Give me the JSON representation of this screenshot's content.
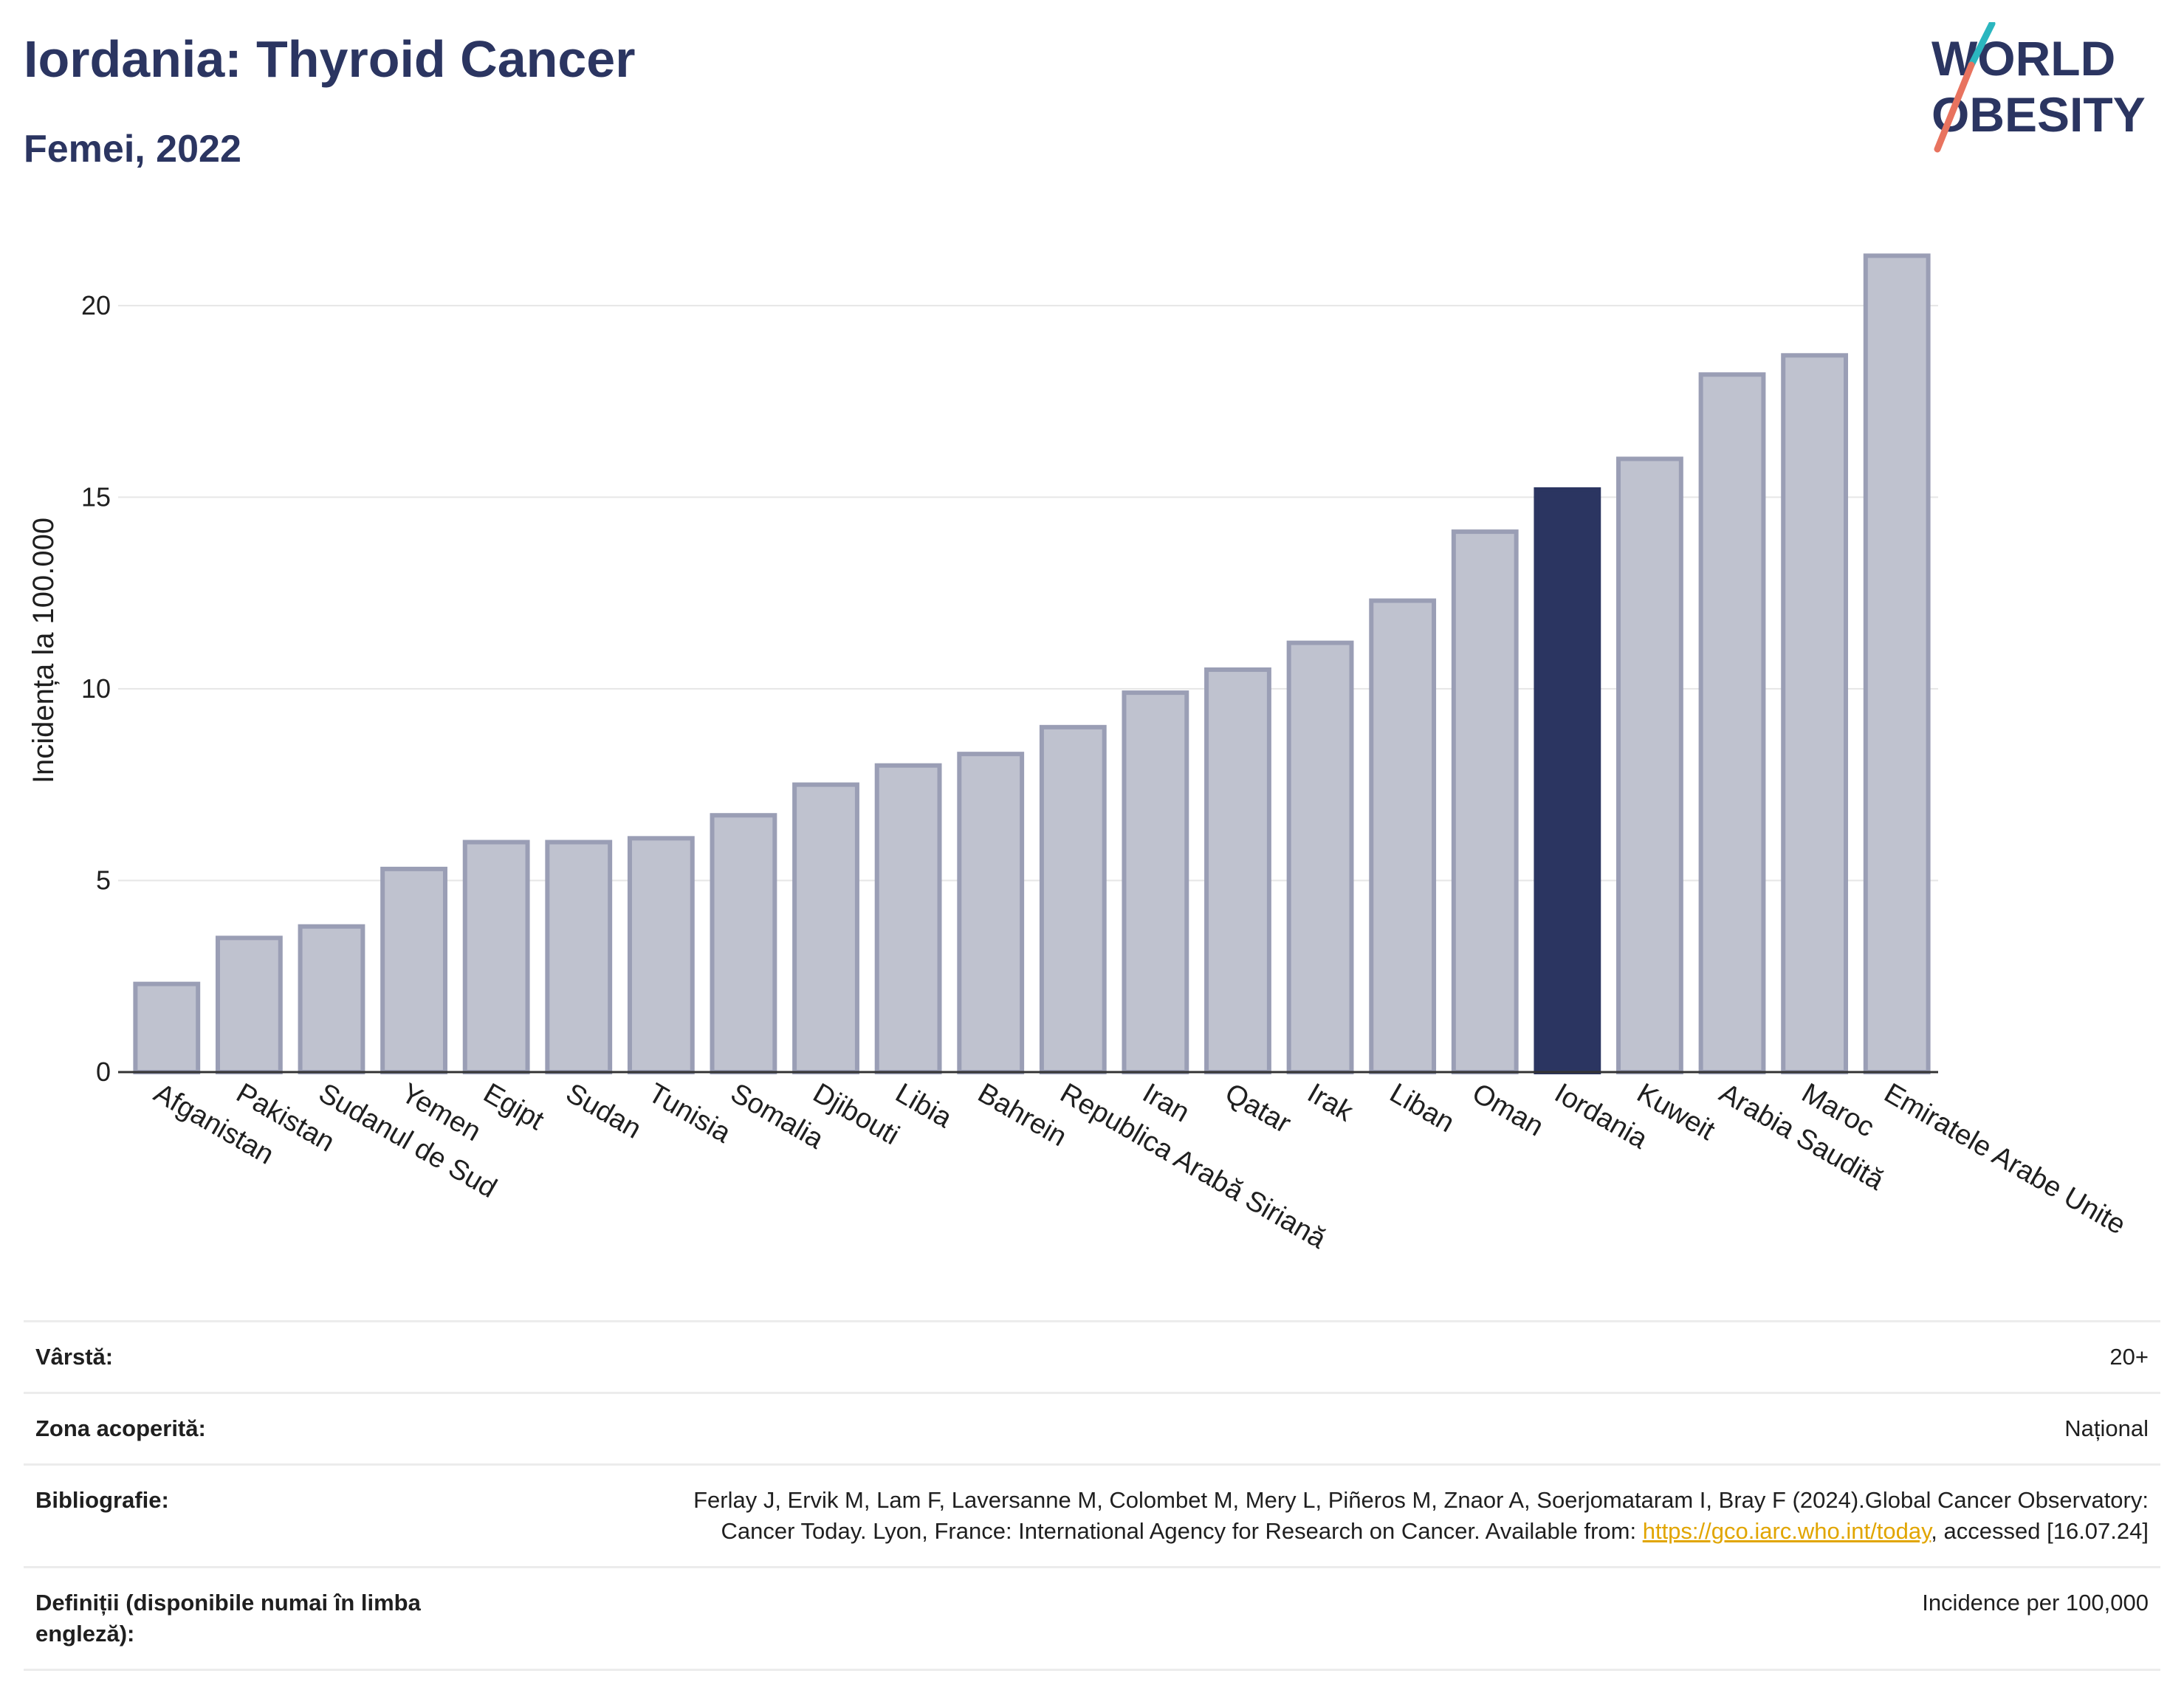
{
  "header": {
    "title": "Iordania: Thyroid Cancer",
    "subtitle": "Femei, 2022"
  },
  "logo": {
    "line1": "WORLD",
    "line2": "OBESITY",
    "accent_teal": "#2bb6bf",
    "accent_red": "#e8735f",
    "text_color": "#2b3561"
  },
  "chart_data": {
    "type": "bar",
    "ylabel": "Incidența la 100.000",
    "ylim": [
      0,
      22
    ],
    "yticks": [
      0,
      5,
      10,
      15,
      20
    ],
    "grid": true,
    "categories": [
      "Afganistan",
      "Pakistan",
      "Sudanul de Sud",
      "Yemen",
      "Egipt",
      "Sudan",
      "Tunisia",
      "Somalia",
      "Djibouti",
      "Libia",
      "Bahrein",
      "Republica Arabă Siriană",
      "Iran",
      "Qatar",
      "Irak",
      "Liban",
      "Oman",
      "Iordania",
      "Kuweit",
      "Arabia Saudită",
      "Maroc",
      "Emiratele Arabe Unite"
    ],
    "values": [
      2.3,
      3.5,
      3.8,
      5.3,
      6.0,
      6.0,
      6.1,
      6.7,
      7.5,
      8.0,
      8.3,
      9.0,
      9.9,
      10.5,
      11.2,
      12.3,
      14.1,
      15.2,
      16.0,
      18.2,
      18.7,
      21.3
    ],
    "highlight": "Iordania",
    "colors": {
      "bar": "#bfc2cf",
      "bar_edge": "#9a9eb5",
      "highlight": "#2b3561"
    }
  },
  "info": [
    {
      "key": "Vârstă:",
      "value": "20+"
    },
    {
      "key": "Zona acoperită:",
      "value": "Național"
    },
    {
      "key": "Bibliografie:",
      "value_pre": "Ferlay J, Ervik M, Lam F, Laversanne M, Colombet M, Mery L, Piñeros M, Znaor A, Soerjomataram I, Bray F (2024).Global Cancer Observatory: Cancer Today. Lyon, France: International Agency for Research on Cancer. Available from: ",
      "link": "https://gco.iarc.who.int/today",
      "value_post": ", accessed [16.07.24]"
    },
    {
      "key": "Definiții (disponibile numai în limba engleză):",
      "value": "Incidence per 100,000"
    }
  ]
}
